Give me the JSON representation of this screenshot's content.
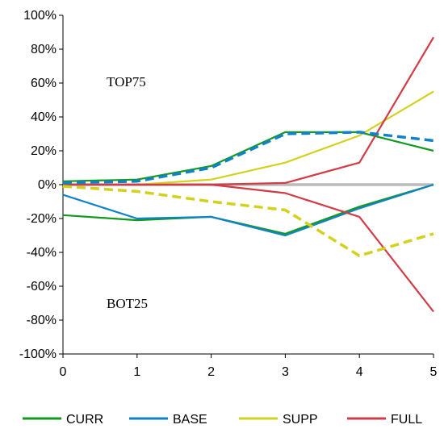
{
  "chart_data": {
    "type": "line",
    "x": [
      0,
      1,
      2,
      3,
      4,
      5
    ],
    "xticks": [
      "0",
      "1",
      "2",
      "3",
      "4",
      "5"
    ],
    "ylim": [
      -100,
      100
    ],
    "yticks": [
      "100%",
      "80%",
      "60%",
      "40%",
      "20%",
      "0%",
      "-20%",
      "-40%",
      "-60%",
      "-80%",
      "-100%"
    ],
    "ytick_values": [
      100,
      80,
      60,
      40,
      20,
      0,
      -20,
      -40,
      -60,
      -80,
      -100
    ],
    "annotations": [
      "TOP75",
      "BOT25"
    ],
    "legend_position": "bottom",
    "series": [
      {
        "name": "CURR",
        "group": "TOP75",
        "style": "solid",
        "color": "#119a1e",
        "values": [
          2,
          3,
          11,
          31,
          31,
          20
        ]
      },
      {
        "name": "BASE",
        "group": "TOP75",
        "style": "dashed",
        "color": "#1282c8",
        "values": [
          1,
          2,
          10,
          30,
          31,
          26
        ]
      },
      {
        "name": "SUPP",
        "group": "TOP75",
        "style": "solid",
        "color": "#d2d21e",
        "values": [
          0,
          0,
          3,
          13,
          29,
          55
        ]
      },
      {
        "name": "FULL",
        "group": "TOP75",
        "style": "solid",
        "color": "#d23c46",
        "values": [
          0,
          0,
          0,
          1,
          13,
          87
        ]
      },
      {
        "name": "CURR",
        "group": "BOT25",
        "style": "solid",
        "color": "#119a1e",
        "values": [
          -18,
          -21,
          -19,
          -29,
          -13,
          0
        ]
      },
      {
        "name": "BASE",
        "group": "BOT25",
        "style": "solid",
        "color": "#1282c8",
        "values": [
          -6,
          -20,
          -19,
          -30,
          -14,
          0
        ]
      },
      {
        "name": "SUPP",
        "group": "BOT25",
        "style": "dashed",
        "color": "#d2d21e",
        "values": [
          -1,
          -4,
          -10,
          -15,
          -42,
          -29
        ]
      },
      {
        "name": "FULL",
        "group": "BOT25",
        "style": "solid",
        "color": "#d23c46",
        "values": [
          0,
          0,
          0,
          -5,
          -19,
          -75
        ]
      }
    ],
    "legend": [
      {
        "name": "CURR",
        "color": "#119a1e"
      },
      {
        "name": "BASE",
        "color": "#1282c8"
      },
      {
        "name": "SUPP",
        "color": "#d2d21e"
      },
      {
        "name": "FULL",
        "color": "#d23c46"
      }
    ],
    "zero_line_color": "#bbbbbb"
  }
}
